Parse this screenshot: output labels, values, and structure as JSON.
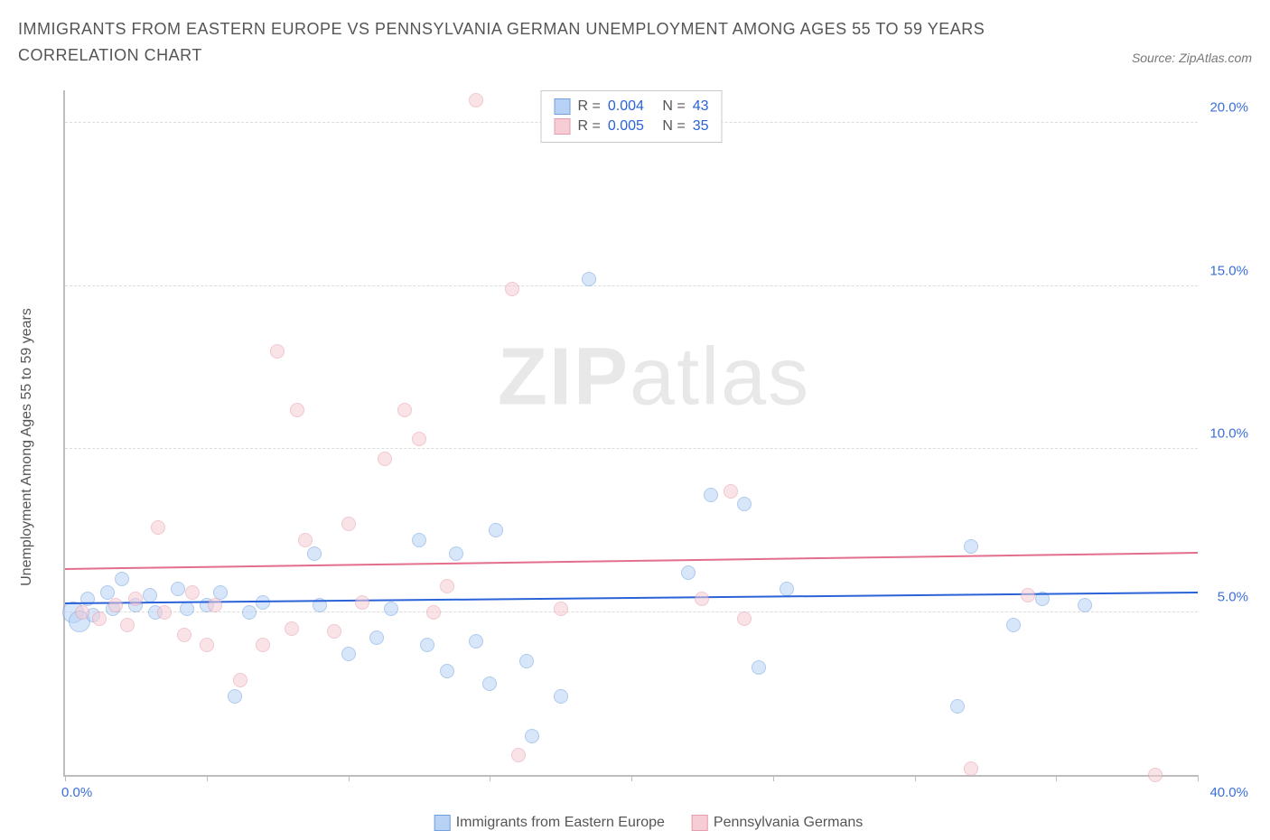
{
  "title": "IMMIGRANTS FROM EASTERN EUROPE VS PENNSYLVANIA GERMAN UNEMPLOYMENT AMONG AGES 55 TO 59 YEARS CORRELATION CHART",
  "source": "Source: ZipAtlas.com",
  "watermark_a": "ZIP",
  "watermark_b": "atlas",
  "chart": {
    "type": "scatter",
    "ylabel": "Unemployment Among Ages 55 to 59 years",
    "xlim": [
      0,
      40
    ],
    "ylim": [
      0,
      21
    ],
    "xticks": [
      0,
      5,
      10,
      15,
      20,
      25,
      30,
      35,
      40
    ],
    "x_edge_labels": {
      "min": "0.0%",
      "max": "40.0%"
    },
    "yticks": [
      {
        "v": 5,
        "label": "5.0%"
      },
      {
        "v": 10,
        "label": "10.0%"
      },
      {
        "v": 15,
        "label": "15.0%"
      },
      {
        "v": 20,
        "label": "20.0%"
      }
    ],
    "background_color": "#ffffff",
    "grid_color": "#dcdcdc",
    "axis_color": "#bdbdbd",
    "tick_label_color": "#3b6fd6",
    "marker_radius": 8,
    "marker_radius_large": 12,
    "marker_opacity": 0.55,
    "series": [
      {
        "name": "Immigrants from Eastern Europe",
        "color_fill": "#b8d2f5",
        "color_stroke": "#6f9fe0",
        "trend": {
          "y0": 5.3,
          "y1": 5.5,
          "color": "#2a62d8",
          "width": 2
        },
        "R": "0.004",
        "N": "43",
        "points": [
          {
            "x": 0.3,
            "y": 5.0,
            "r": 12
          },
          {
            "x": 0.5,
            "y": 4.7,
            "r": 12
          },
          {
            "x": 0.8,
            "y": 5.4
          },
          {
            "x": 1.0,
            "y": 4.9
          },
          {
            "x": 1.5,
            "y": 5.6
          },
          {
            "x": 1.7,
            "y": 5.1
          },
          {
            "x": 2.0,
            "y": 6.0
          },
          {
            "x": 2.5,
            "y": 5.2
          },
          {
            "x": 3.0,
            "y": 5.5
          },
          {
            "x": 3.2,
            "y": 5.0
          },
          {
            "x": 4.0,
            "y": 5.7
          },
          {
            "x": 4.3,
            "y": 5.1
          },
          {
            "x": 5.0,
            "y": 5.2
          },
          {
            "x": 5.5,
            "y": 5.6
          },
          {
            "x": 6.0,
            "y": 2.4
          },
          {
            "x": 6.5,
            "y": 5.0
          },
          {
            "x": 7.0,
            "y": 5.3
          },
          {
            "x": 8.8,
            "y": 6.8
          },
          {
            "x": 9.0,
            "y": 5.2
          },
          {
            "x": 10.0,
            "y": 3.7
          },
          {
            "x": 11.0,
            "y": 4.2
          },
          {
            "x": 11.5,
            "y": 5.1
          },
          {
            "x": 12.5,
            "y": 7.2
          },
          {
            "x": 12.8,
            "y": 4.0
          },
          {
            "x": 13.5,
            "y": 3.2
          },
          {
            "x": 13.8,
            "y": 6.8
          },
          {
            "x": 14.5,
            "y": 4.1
          },
          {
            "x": 15.0,
            "y": 2.8
          },
          {
            "x": 15.2,
            "y": 7.5
          },
          {
            "x": 16.3,
            "y": 3.5
          },
          {
            "x": 16.5,
            "y": 1.2
          },
          {
            "x": 17.5,
            "y": 2.4
          },
          {
            "x": 18.5,
            "y": 15.2
          },
          {
            "x": 22.0,
            "y": 6.2
          },
          {
            "x": 22.8,
            "y": 8.6
          },
          {
            "x": 24.0,
            "y": 8.3
          },
          {
            "x": 24.5,
            "y": 3.3
          },
          {
            "x": 25.5,
            "y": 5.7
          },
          {
            "x": 31.5,
            "y": 2.1
          },
          {
            "x": 32.0,
            "y": 7.0
          },
          {
            "x": 33.5,
            "y": 4.6
          },
          {
            "x": 34.5,
            "y": 5.4
          },
          {
            "x": 36.0,
            "y": 5.2
          }
        ]
      },
      {
        "name": "Pennsylvania Germans",
        "color_fill": "#f6cdd5",
        "color_stroke": "#e59aad",
        "trend": {
          "y0": 6.4,
          "y1": 6.7,
          "color": "#e36f8c",
          "width": 2
        },
        "R": "0.005",
        "N": "35",
        "points": [
          {
            "x": 0.6,
            "y": 5.0
          },
          {
            "x": 1.2,
            "y": 4.8
          },
          {
            "x": 1.8,
            "y": 5.2
          },
          {
            "x": 2.2,
            "y": 4.6
          },
          {
            "x": 2.5,
            "y": 5.4
          },
          {
            "x": 3.3,
            "y": 7.6
          },
          {
            "x": 3.5,
            "y": 5.0
          },
          {
            "x": 4.2,
            "y": 4.3
          },
          {
            "x": 4.5,
            "y": 5.6
          },
          {
            "x": 5.0,
            "y": 4.0
          },
          {
            "x": 5.3,
            "y": 5.2
          },
          {
            "x": 6.2,
            "y": 2.9
          },
          {
            "x": 7.0,
            "y": 4.0
          },
          {
            "x": 7.5,
            "y": 13.0
          },
          {
            "x": 8.0,
            "y": 4.5
          },
          {
            "x": 8.2,
            "y": 11.2
          },
          {
            "x": 8.5,
            "y": 7.2
          },
          {
            "x": 9.5,
            "y": 4.4
          },
          {
            "x": 10.0,
            "y": 7.7
          },
          {
            "x": 10.5,
            "y": 5.3
          },
          {
            "x": 11.3,
            "y": 9.7
          },
          {
            "x": 12.0,
            "y": 11.2
          },
          {
            "x": 12.5,
            "y": 10.3
          },
          {
            "x": 13.0,
            "y": 5.0
          },
          {
            "x": 13.5,
            "y": 5.8
          },
          {
            "x": 14.5,
            "y": 20.7
          },
          {
            "x": 15.8,
            "y": 14.9
          },
          {
            "x": 16.0,
            "y": 0.6
          },
          {
            "x": 22.5,
            "y": 5.4
          },
          {
            "x": 23.5,
            "y": 8.7
          },
          {
            "x": 24.0,
            "y": 4.8
          },
          {
            "x": 32.0,
            "y": 0.2
          },
          {
            "x": 34.0,
            "y": 5.5
          },
          {
            "x": 38.5,
            "y": 0.0
          },
          {
            "x": 17.5,
            "y": 5.1
          }
        ]
      }
    ],
    "legend_top_labels": {
      "R": "R =",
      "N": "N ="
    },
    "legend_bottom": [
      {
        "label": "Immigrants from Eastern Europe",
        "fill": "#b8d2f5",
        "stroke": "#6f9fe0"
      },
      {
        "label": "Pennsylvania Germans",
        "fill": "#f6cdd5",
        "stroke": "#e59aad"
      }
    ]
  }
}
